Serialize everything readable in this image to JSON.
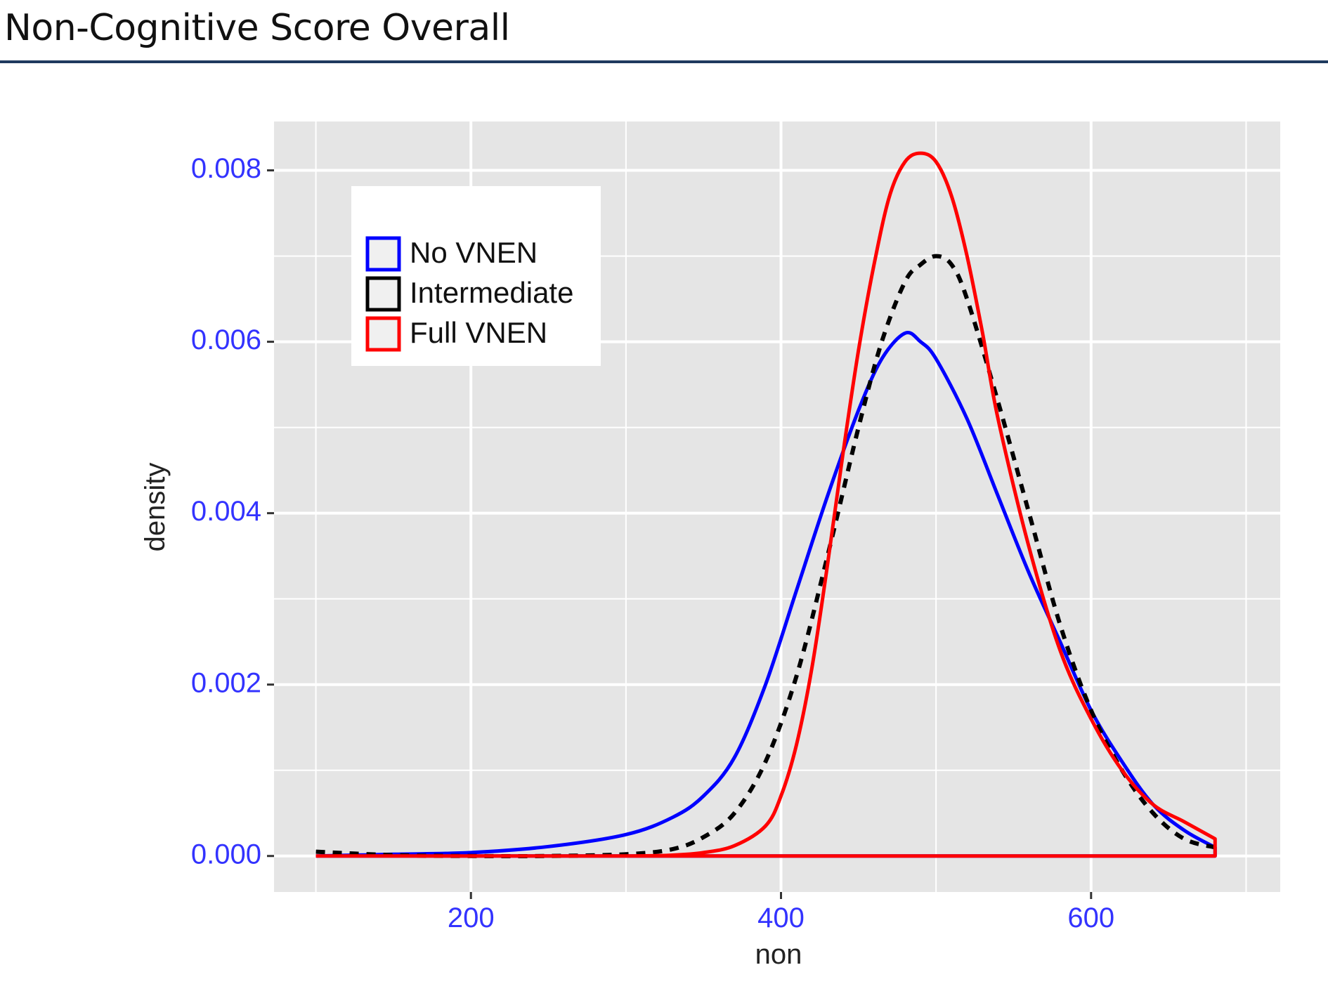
{
  "header": {
    "title": "Non-Cognitive Score Overall"
  },
  "colors": {
    "tick_label": "#3333ff",
    "panel_bg": "#e5e5e5",
    "grid": "#ffffff",
    "rule": "#1f3a5f"
  },
  "chart_data": {
    "type": "area",
    "title": "",
    "xlabel": "non",
    "ylabel": "density",
    "xlim": [
      73,
      722
    ],
    "ylim": [
      -0.00042,
      0.00857
    ],
    "x_ticks": [
      {
        "value": 200,
        "label": "200"
      },
      {
        "value": 400,
        "label": "400"
      },
      {
        "value": 600,
        "label": "600"
      }
    ],
    "y_ticks": [
      {
        "value": 0,
        "label": "0.000"
      },
      {
        "value": 0.002,
        "label": "0.002"
      },
      {
        "value": 0.004,
        "label": "0.004"
      },
      {
        "value": 0.006,
        "label": "0.006"
      },
      {
        "value": 0.008,
        "label": "0.008"
      }
    ],
    "grid": true,
    "legend_position": "top-left",
    "series": [
      {
        "name": "No VNEN",
        "color": "#0000ff",
        "dash": "solid",
        "x": [
          100,
          150,
          200,
          250,
          300,
          330,
          350,
          370,
          390,
          410,
          430,
          450,
          465,
          480,
          490,
          500,
          520,
          540,
          560,
          580,
          600,
          620,
          640,
          660,
          680
        ],
        "y": [
          0.0,
          2e-05,
          4e-05,
          0.00011,
          0.00025,
          0.00045,
          0.0007,
          0.00115,
          0.002,
          0.0031,
          0.0042,
          0.0052,
          0.0058,
          0.0061,
          0.006,
          0.0058,
          0.0051,
          0.0042,
          0.0033,
          0.0025,
          0.0017,
          0.0011,
          0.0006,
          0.0003,
          0.0001
        ]
      },
      {
        "name": "Intermediate",
        "color": "#000000",
        "dash": "dashed",
        "x": [
          100,
          150,
          200,
          250,
          300,
          330,
          350,
          370,
          390,
          410,
          430,
          450,
          465,
          480,
          490,
          500,
          510,
          520,
          540,
          560,
          580,
          600,
          620,
          640,
          660,
          680
        ],
        "y": [
          5e-05,
          1e-05,
          0.0,
          0.0,
          2e-05,
          8e-05,
          0.00022,
          0.0005,
          0.0011,
          0.0021,
          0.0035,
          0.005,
          0.006,
          0.0067,
          0.0069,
          0.007,
          0.0069,
          0.0065,
          0.0053,
          0.004,
          0.0027,
          0.0017,
          0.001,
          0.0005,
          0.0002,
          0.0001
        ]
      },
      {
        "name": "Full VNEN",
        "color": "#ff0000",
        "dash": "solid",
        "x": [
          100,
          200,
          300,
          330,
          350,
          370,
          390,
          400,
          410,
          420,
          430,
          440,
          450,
          460,
          470,
          480,
          490,
          500,
          510,
          520,
          530,
          540,
          560,
          580,
          600,
          620,
          640,
          660,
          680
        ],
        "y": [
          0.0,
          0.0,
          0.0,
          1e-05,
          4e-05,
          0.00012,
          0.00035,
          0.0007,
          0.0013,
          0.0022,
          0.0034,
          0.0047,
          0.0059,
          0.0069,
          0.0077,
          0.0081,
          0.0082,
          0.0081,
          0.0077,
          0.007,
          0.0061,
          0.0051,
          0.0036,
          0.0024,
          0.0016,
          0.001,
          0.0006,
          0.0004,
          0.0002
        ]
      }
    ]
  }
}
